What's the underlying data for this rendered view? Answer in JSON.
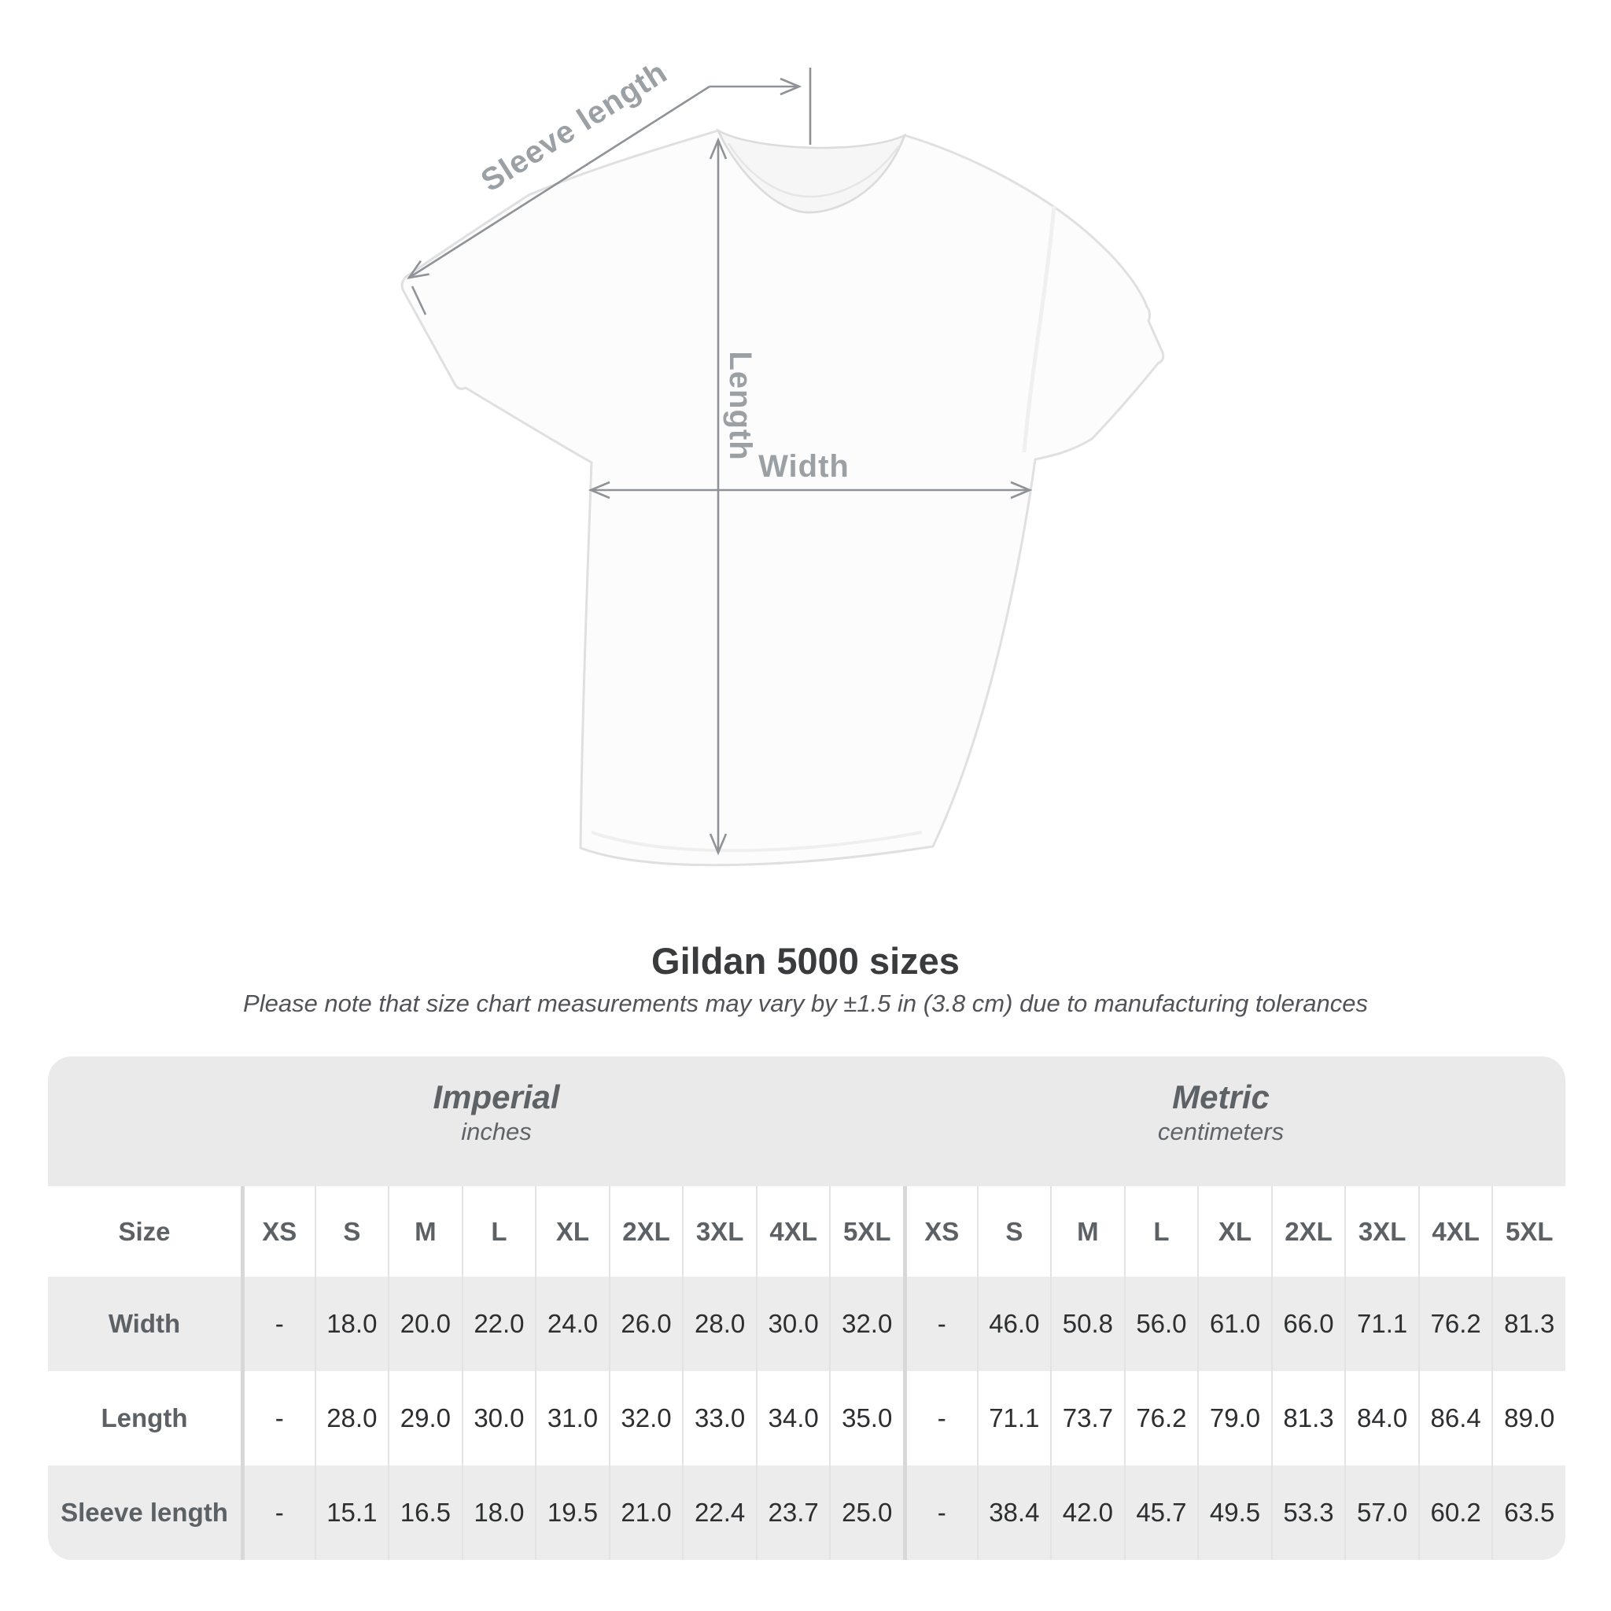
{
  "diagram": {
    "labels": {
      "sleeve_length": "Sleeve length",
      "length": "Length",
      "width": "Width"
    },
    "colors": {
      "arrow": "#8f9397",
      "label": "#9ba0a5",
      "shirt_outline": "#e0e0e0"
    }
  },
  "title": "Gildan 5000 sizes",
  "subtitle": "Please note that size chart measurements may vary by ±1.5 in (3.8 cm) due to manufacturing tolerances",
  "chart_data": {
    "type": "table",
    "title": "Gildan 5000 sizes",
    "note": "Please note that size chart measurements may vary by ±1.5 in (3.8 cm) due to manufacturing tolerances",
    "size_column_header": "Size",
    "sizes": [
      "XS",
      "S",
      "M",
      "L",
      "XL",
      "2XL",
      "3XL",
      "4XL",
      "5XL"
    ],
    "groups": [
      {
        "label": "Imperial",
        "unit": "inches"
      },
      {
        "label": "Metric",
        "unit": "centimeters"
      }
    ],
    "rows": [
      {
        "label": "Width",
        "imperial": [
          "-",
          "18.0",
          "20.0",
          "22.0",
          "24.0",
          "26.0",
          "28.0",
          "30.0",
          "32.0"
        ],
        "metric": [
          "-",
          "46.0",
          "50.8",
          "56.0",
          "61.0",
          "66.0",
          "71.1",
          "76.2",
          "81.3"
        ]
      },
      {
        "label": "Length",
        "imperial": [
          "-",
          "28.0",
          "29.0",
          "30.0",
          "31.0",
          "32.0",
          "33.0",
          "34.0",
          "35.0"
        ],
        "metric": [
          "-",
          "71.1",
          "73.7",
          "76.2",
          "79.0",
          "81.3",
          "84.0",
          "86.4",
          "89.0"
        ]
      },
      {
        "label": "Sleeve length",
        "imperial": [
          "-",
          "15.1",
          "16.5",
          "18.0",
          "19.5",
          "21.0",
          "22.4",
          "23.7",
          "25.0"
        ],
        "metric": [
          "-",
          "38.4",
          "42.0",
          "45.7",
          "49.5",
          "53.3",
          "57.0",
          "60.2",
          "63.5"
        ]
      }
    ],
    "table_colors": {
      "band_background": "#eaeaea",
      "alt_row_background": "#ececec",
      "header_text": "#5c6166",
      "value_text": "#2d2e30"
    }
  }
}
